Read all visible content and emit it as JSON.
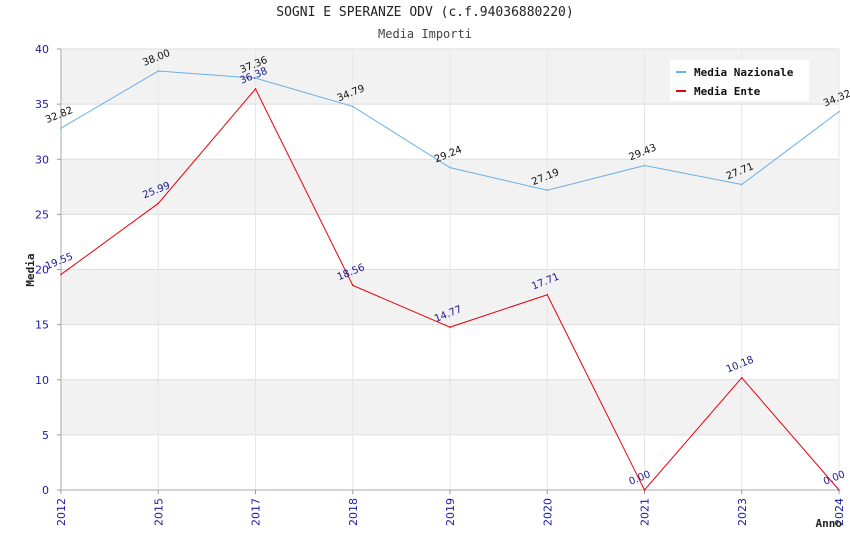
{
  "chart_data": {
    "type": "line",
    "title": "SOGNI E SPERANZE ODV (c.f.94036880220)",
    "subtitle": "Media Importi",
    "xlabel": "Anno",
    "ylabel": "Media",
    "ylim": [
      0,
      40
    ],
    "yticks": [
      "0",
      "5",
      "10",
      "15",
      "20",
      "25",
      "30",
      "35",
      "40"
    ],
    "categories": [
      "2012",
      "2015",
      "2017",
      "2018",
      "2019",
      "2020",
      "2021",
      "2023",
      "2024"
    ],
    "legend_position": "top-right",
    "series": [
      {
        "name": "Media Nazionale",
        "color": "#6aaee8",
        "label_color": "#111111",
        "values": [
          32.82,
          38.0,
          37.36,
          34.79,
          29.24,
          27.19,
          29.43,
          27.71,
          34.32
        ],
        "labels": [
          "32.82",
          "38.00",
          "37.36",
          "34.79",
          "29.24",
          "27.19",
          "29.43",
          "27.71",
          "34.32"
        ]
      },
      {
        "name": "Media Ente",
        "color": "#e8000b",
        "label_color": "#1a1a8c",
        "values": [
          19.55,
          25.99,
          36.38,
          18.56,
          14.77,
          17.71,
          0.0,
          10.18,
          0.0
        ],
        "labels": [
          "19.55",
          "25.99",
          "36.38",
          "18.56",
          "14.77",
          "17.71",
          "0.00",
          "10.18",
          "0.00"
        ]
      }
    ]
  }
}
